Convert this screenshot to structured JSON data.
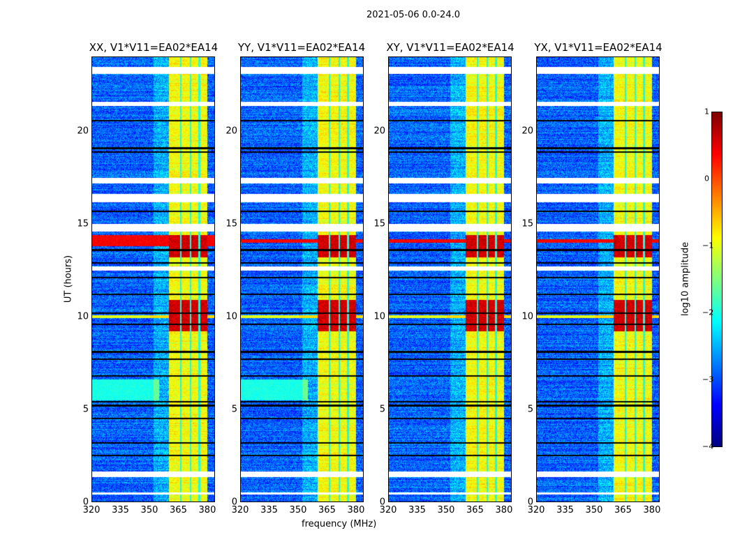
{
  "chart_data": {
    "type": "heatmap",
    "title": "2021-05-06 0.0-24.0",
    "xlabel": "frequency (MHz)",
    "ylabel": "UT (hours)",
    "xlim": [
      320,
      384
    ],
    "ylim": [
      0,
      24
    ],
    "xticks": [
      "320",
      "335",
      "350",
      "365",
      "380"
    ],
    "xtick_values": [
      320,
      335,
      350,
      365,
      380
    ],
    "yticks": [
      "0",
      "5",
      "10",
      "15",
      "20"
    ],
    "ytick_values": [
      0,
      5,
      10,
      15,
      20
    ],
    "panels": [
      {
        "title": "XX, V1*V11=EA02*EA14",
        "low_freq_cyan_hours": [
          5.5,
          6.6
        ],
        "strong_rfi_hours": [
          13.8,
          14.4
        ]
      },
      {
        "title": "YY, V1*V11=EA02*EA14",
        "low_freq_cyan_hours": [
          5.5,
          6.6
        ],
        "strong_rfi_hours": [
          14.0,
          14.2
        ]
      },
      {
        "title": "XY, V1*V11=EA02*EA14",
        "low_freq_cyan_hours": [],
        "strong_rfi_hours": [
          14.0,
          14.2
        ]
      },
      {
        "title": "YX, V1*V11=EA02*EA14",
        "low_freq_cyan_hours": [],
        "strong_rfi_hours": [
          14.0,
          14.2
        ]
      }
    ],
    "bright_band_mhz": [
      360,
      380
    ],
    "band_notches_mhz": [
      366.3,
      371.3,
      376.0
    ],
    "hot_hours": [
      [
        9.2,
        10.9
      ],
      [
        13.2,
        14.4
      ]
    ],
    "flagged_white_hours": [
      [
        23.1,
        23.5
      ],
      [
        21.4,
        21.6
      ],
      [
        17.2,
        17.5
      ],
      [
        16.2,
        16.65
      ],
      [
        14.6,
        15.0
      ],
      [
        12.5,
        12.7
      ],
      [
        1.35,
        1.65
      ],
      [
        0.4,
        0.5
      ]
    ],
    "flagged_black_hours": [
      20.6,
      19.1,
      18.9,
      15.7,
      13.6,
      12.9,
      12.1,
      11.2,
      10.2,
      9.6,
      8.1,
      7.7,
      6.8,
      5.4,
      5.2,
      4.5,
      3.2,
      2.5
    ],
    "colorbar": {
      "label": "log10 amplitude",
      "range": [
        -4,
        1
      ],
      "ticks": [
        "1",
        "0",
        "−1",
        "−2",
        "−3",
        "−4"
      ],
      "colormap": "jet"
    }
  }
}
